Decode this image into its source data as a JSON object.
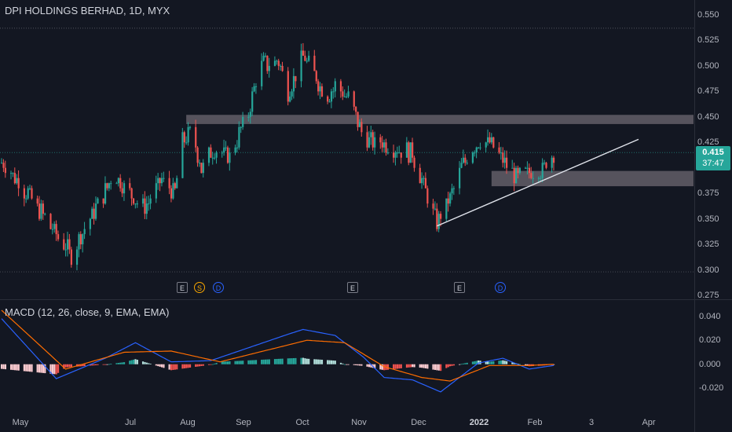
{
  "header": {
    "title": "DPI HOLDINGS BERHAD, 1D, MYX"
  },
  "macd_label": "MACD (12, 26, close, 9, EMA, EMA)",
  "price_axis": {
    "ticks": [
      "0.550",
      "0.525",
      "0.500",
      "0.475",
      "0.450",
      "0.425",
      "0.400",
      "0.375",
      "0.350",
      "0.325",
      "0.300",
      "0.275"
    ]
  },
  "macd_axis": {
    "ticks": [
      "0.040",
      "0.020",
      "0.000",
      "-0.020"
    ]
  },
  "time_axis": {
    "ticks": [
      {
        "label": "May",
        "bold": false
      },
      {
        "label": "Jul",
        "bold": false
      },
      {
        "label": "Aug",
        "bold": false
      },
      {
        "label": "Sep",
        "bold": false
      },
      {
        "label": "Oct",
        "bold": false
      },
      {
        "label": "Nov",
        "bold": false
      },
      {
        "label": "Dec",
        "bold": false
      },
      {
        "label": "2022",
        "bold": true
      },
      {
        "label": "Feb",
        "bold": false
      },
      {
        "label": "3",
        "bold": false
      },
      {
        "label": "Apr",
        "bold": false
      }
    ]
  },
  "last_price": {
    "value": "0.415",
    "countdown": "37:47"
  },
  "events": [
    {
      "letter": "E",
      "kind": "e"
    },
    {
      "letter": "S",
      "kind": "s"
    },
    {
      "letter": "D",
      "kind": "d"
    },
    {
      "letter": "E",
      "kind": "e"
    },
    {
      "letter": "E",
      "kind": "e"
    },
    {
      "letter": "D",
      "kind": "d"
    }
  ],
  "colors": {
    "up": "#26a69a",
    "down": "#ef5350",
    "macd": "#2962ff",
    "signal": "#ff6d00",
    "zone": "#b2a7b0",
    "background": "#131722"
  },
  "chart_data": {
    "type": "candlestick",
    "symbol": "DPI HOLDINGS BERHAD",
    "interval": "1D",
    "exchange": "MYX",
    "ylim": [
      0.275,
      0.55
    ],
    "last": 0.415,
    "close_path": [
      {
        "date": "2021-04-21",
        "close": 0.405
      },
      {
        "date": "2021-05-05",
        "close": 0.375
      },
      {
        "date": "2021-05-20",
        "close": 0.335
      },
      {
        "date": "2021-05-28",
        "close": 0.315
      },
      {
        "date": "2021-06-10",
        "close": 0.36
      },
      {
        "date": "2021-06-20",
        "close": 0.395
      },
      {
        "date": "2021-06-28",
        "close": 0.375
      },
      {
        "date": "2021-07-06",
        "close": 0.36
      },
      {
        "date": "2021-07-15",
        "close": 0.39
      },
      {
        "date": "2021-07-22",
        "close": 0.375
      },
      {
        "date": "2021-07-26",
        "close": 0.425
      },
      {
        "date": "2021-07-31",
        "close": 0.435
      },
      {
        "date": "2021-08-05",
        "close": 0.4
      },
      {
        "date": "2021-08-12",
        "close": 0.42
      },
      {
        "date": "2021-08-20",
        "close": 0.41
      },
      {
        "date": "2021-08-30",
        "close": 0.455
      },
      {
        "date": "2021-09-05",
        "close": 0.5
      },
      {
        "date": "2021-09-15",
        "close": 0.505
      },
      {
        "date": "2021-09-20",
        "close": 0.475
      },
      {
        "date": "2021-09-28",
        "close": 0.51
      },
      {
        "date": "2021-10-03",
        "close": 0.495
      },
      {
        "date": "2021-10-10",
        "close": 0.47
      },
      {
        "date": "2021-10-15",
        "close": 0.48
      },
      {
        "date": "2021-10-22",
        "close": 0.47
      },
      {
        "date": "2021-10-30",
        "close": 0.43
      },
      {
        "date": "2021-11-05",
        "close": 0.425
      },
      {
        "date": "2021-11-10",
        "close": 0.425
      },
      {
        "date": "2021-11-15",
        "close": 0.42
      },
      {
        "date": "2021-11-25",
        "close": 0.415
      },
      {
        "date": "2021-12-02",
        "close": 0.375
      },
      {
        "date": "2021-12-08",
        "close": 0.345
      },
      {
        "date": "2021-12-15",
        "close": 0.37
      },
      {
        "date": "2021-12-22",
        "close": 0.405
      },
      {
        "date": "2021-12-30",
        "close": 0.425
      },
      {
        "date": "2022-01-05",
        "close": 0.425
      },
      {
        "date": "2022-01-12",
        "close": 0.41
      },
      {
        "date": "2022-01-19",
        "close": 0.39
      },
      {
        "date": "2022-01-26",
        "close": 0.395
      },
      {
        "date": "2022-02-02",
        "close": 0.4
      },
      {
        "date": "2022-02-08",
        "close": 0.415
      }
    ],
    "resistance_zone": [
      0.443,
      0.452
    ],
    "support_zone": [
      0.382,
      0.397
    ],
    "trendline": [
      {
        "date": "2021-12-08",
        "price": 0.343
      },
      {
        "date": "2022-03-25",
        "price": 0.428
      }
    ],
    "macd": {
      "fast": 12,
      "slow": 26,
      "signal": 9,
      "ylim": [
        -0.027,
        0.045
      ],
      "macd_path": [
        {
          "date": "2021-04-21",
          "value": 0.038
        },
        {
          "date": "2021-05-20",
          "value": -0.012
        },
        {
          "date": "2021-06-15",
          "value": 0.005
        },
        {
          "date": "2021-07-01",
          "value": 0.018
        },
        {
          "date": "2021-07-20",
          "value": 0.002
        },
        {
          "date": "2021-08-10",
          "value": 0.003
        },
        {
          "date": "2021-09-20",
          "value": 0.025
        },
        {
          "date": "2021-09-28",
          "value": 0.029
        },
        {
          "date": "2021-10-15",
          "value": 0.024
        },
        {
          "date": "2021-10-30",
          "value": 0.006
        },
        {
          "date": "2021-11-10",
          "value": -0.011
        },
        {
          "date": "2021-11-25",
          "value": -0.013
        },
        {
          "date": "2021-12-10",
          "value": -0.023
        },
        {
          "date": "2021-12-30",
          "value": 0.001
        },
        {
          "date": "2022-01-12",
          "value": 0.005
        },
        {
          "date": "2022-01-26",
          "value": -0.004
        },
        {
          "date": "2022-02-08",
          "value": -0.001
        }
      ],
      "signal_path": [
        {
          "date": "2021-04-21",
          "value": 0.045
        },
        {
          "date": "2021-05-25",
          "value": -0.004
        },
        {
          "date": "2021-06-25",
          "value": 0.01
        },
        {
          "date": "2021-07-20",
          "value": 0.011
        },
        {
          "date": "2021-08-15",
          "value": 0.002
        },
        {
          "date": "2021-09-30",
          "value": 0.02
        },
        {
          "date": "2021-10-20",
          "value": 0.018
        },
        {
          "date": "2021-11-10",
          "value": -0.002
        },
        {
          "date": "2021-11-30",
          "value": -0.011
        },
        {
          "date": "2021-12-15",
          "value": -0.014
        },
        {
          "date": "2022-01-05",
          "value": -0.001
        },
        {
          "date": "2022-01-26",
          "value": -0.001
        },
        {
          "date": "2022-02-08",
          "value": 0.0
        }
      ]
    }
  }
}
